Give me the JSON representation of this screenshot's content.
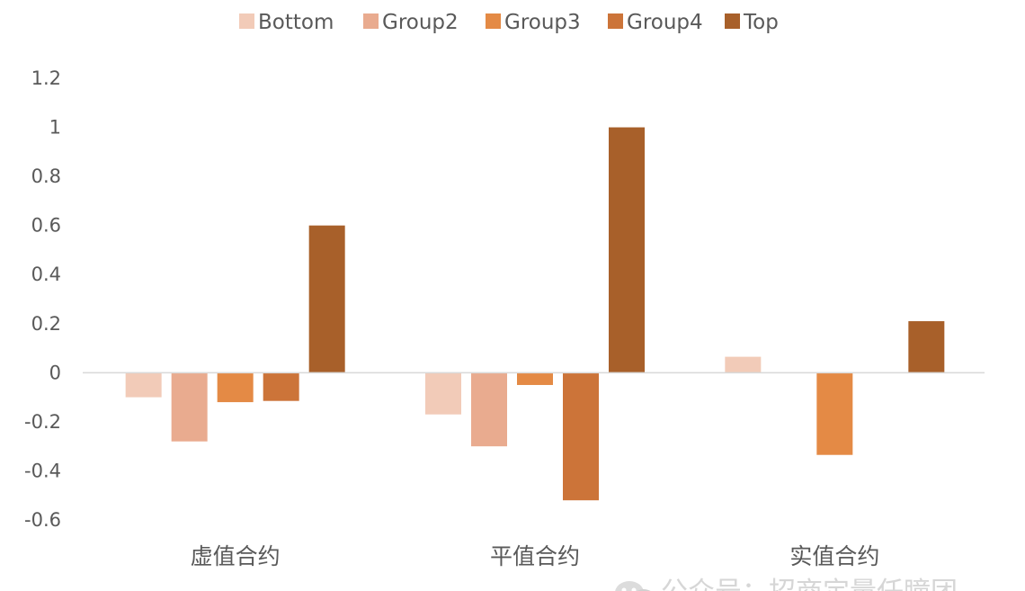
{
  "chart_data": {
    "type": "bar",
    "categories": [
      "虚值合约",
      "平值合约",
      "实值合约"
    ],
    "series": [
      {
        "name": "Bottom",
        "color": "#F2CBB8",
        "values": [
          -0.1,
          -0.17,
          0.065
        ]
      },
      {
        "name": "Group2",
        "color": "#E9AB8F",
        "values": [
          -0.28,
          -0.3,
          0.0
        ]
      },
      {
        "name": "Group3",
        "color": "#E48A45",
        "values": [
          -0.12,
          -0.05,
          -0.335
        ]
      },
      {
        "name": "Group4",
        "color": "#CC7439",
        "values": [
          -0.115,
          -0.52,
          0.0
        ]
      },
      {
        "name": "Top",
        "color": "#A8602A",
        "values": [
          0.6,
          1.0,
          0.21
        ]
      }
    ],
    "y_ticks": [
      "1.2",
      "1",
      "0.8",
      "0.6",
      "0.4",
      "0.2",
      "0",
      "-0.2",
      "-0.4",
      "-0.6"
    ],
    "ylim": [
      -0.6,
      1.2
    ],
    "grid": false,
    "legend_position": "top",
    "title": "",
    "xlabel": "",
    "ylabel": ""
  },
  "watermark": {
    "text": "公众号：招商定量任瞳团",
    "icon": "wechat-icon"
  }
}
